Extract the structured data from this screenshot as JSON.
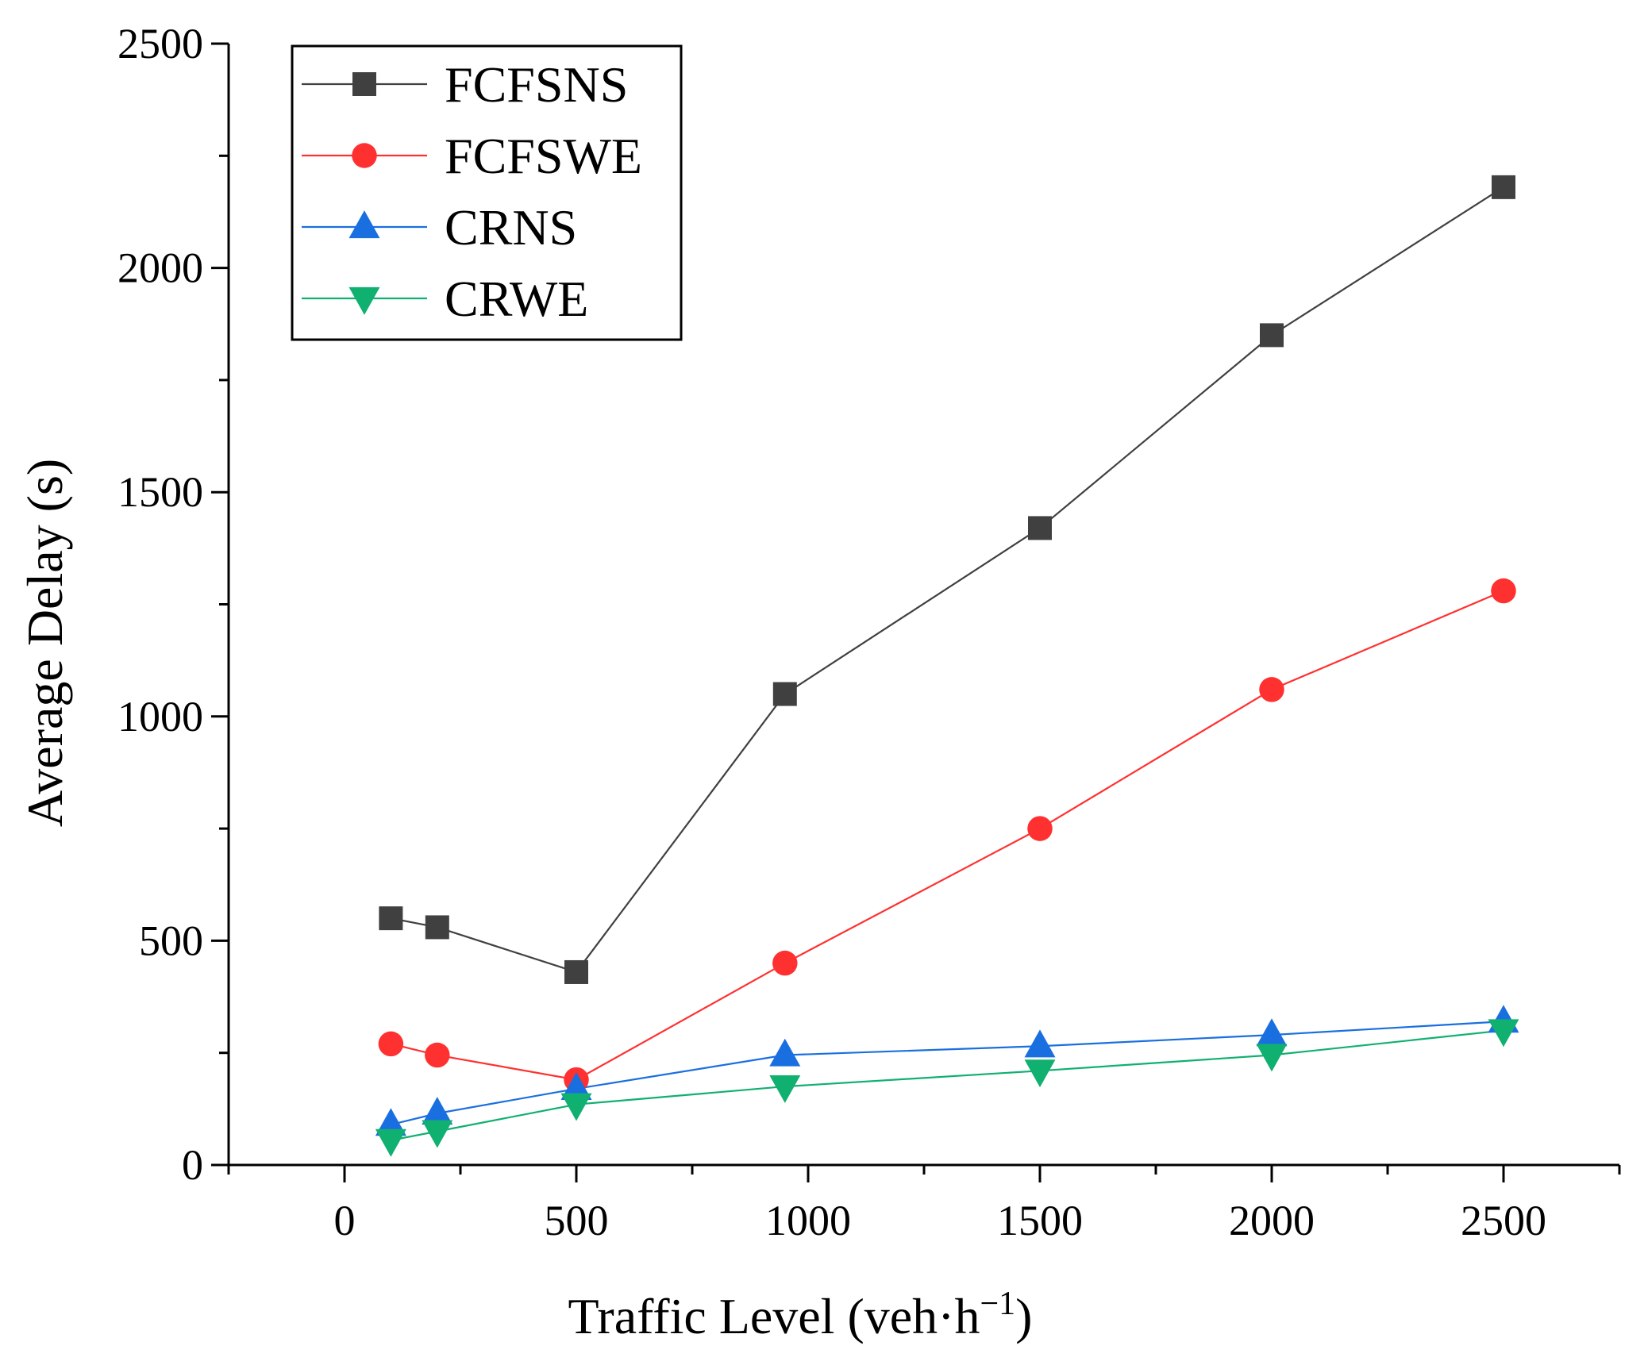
{
  "chart_data": {
    "type": "line",
    "title": "",
    "xlabel": "Traffic Level (veh·h",
    "xlabel_superscript": "−1",
    "xlabel_suffix": ")",
    "ylabel": "Average Delay (s)",
    "xlim": [
      -250,
      2750
    ],
    "ylim": [
      0,
      2500
    ],
    "xticks": [
      0,
      500,
      1000,
      1500,
      2000,
      2500
    ],
    "xtick_labels": [
      "0",
      "500",
      "1000",
      "1500",
      "2000",
      "2500"
    ],
    "yticks": [
      0,
      500,
      1000,
      1500,
      2000,
      2500
    ],
    "ytick_labels": [
      "0",
      "500",
      "1000",
      "1500",
      "2000",
      "2500"
    ],
    "grid": false,
    "legend_position": "top-left",
    "x": [
      100,
      200,
      500,
      950,
      1500,
      2000,
      2500
    ],
    "series": [
      {
        "name": "FCFSNS",
        "color": "#404040",
        "marker": "square",
        "values": [
          550,
          530,
          430,
          1050,
          1420,
          1850,
          2180
        ]
      },
      {
        "name": "FCFSWE",
        "color": "#ff3030",
        "marker": "circle",
        "values": [
          270,
          245,
          190,
          450,
          750,
          1060,
          1280
        ]
      },
      {
        "name": "CRNS",
        "color": "#1a6fe0",
        "marker": "triangle-up",
        "values": [
          90,
          115,
          170,
          245,
          265,
          290,
          320
        ]
      },
      {
        "name": "CRWE",
        "color": "#10b070",
        "marker": "triangle-down",
        "values": [
          55,
          75,
          135,
          175,
          210,
          245,
          300
        ]
      }
    ]
  }
}
